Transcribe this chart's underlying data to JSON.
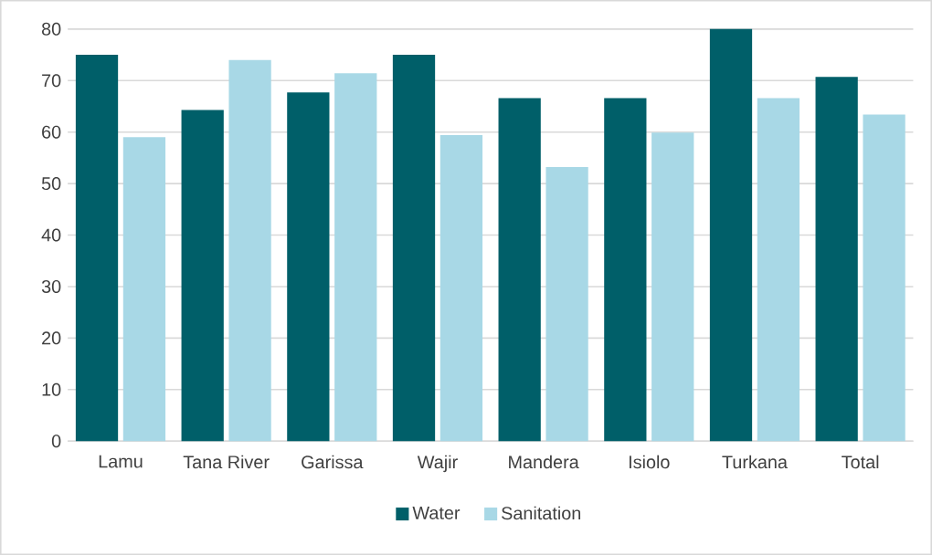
{
  "chart_data": {
    "type": "bar",
    "categories": [
      "Lamu",
      "Tana River",
      "Garissa",
      "Wajir",
      "Mandera",
      "Isiolo",
      "Turkana",
      "Total"
    ],
    "series": [
      {
        "name": "Water",
        "color": "#005f69",
        "values": [
          75,
          64.3,
          67.7,
          75,
          66.6,
          66.6,
          80,
          70.7
        ]
      },
      {
        "name": "Sanitation",
        "color": "#a8d8e6",
        "values": [
          59.0,
          74.0,
          71.4,
          59.4,
          53.2,
          59.9,
          66.6,
          63.4
        ]
      }
    ],
    "ylim": [
      0,
      80
    ],
    "yticks": [
      0,
      10,
      20,
      30,
      40,
      50,
      60,
      70,
      80
    ],
    "grid": "y",
    "legend": "bottom"
  }
}
